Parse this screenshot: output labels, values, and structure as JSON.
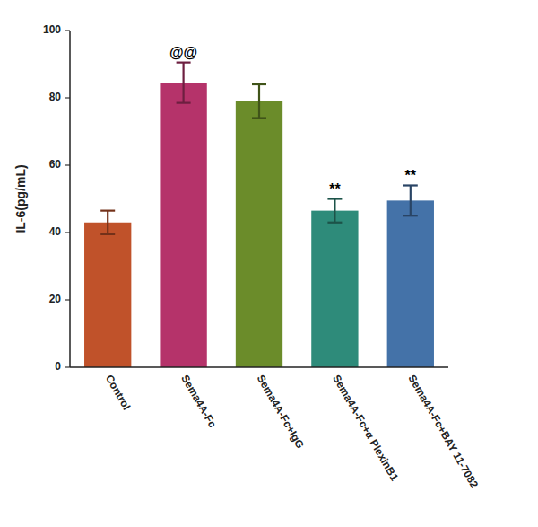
{
  "chart_data": {
    "type": "bar",
    "categories": [
      "Control",
      "Sema4A-Fc",
      "Sema4A-Fc+IgG",
      "Sema4A-Fc+α PlexinB1",
      "Sema4A-Fc+BAY 11-7082"
    ],
    "values": [
      43.0,
      84.5,
      79.0,
      46.5,
      49.5
    ],
    "errors": [
      3.5,
      6.0,
      5.0,
      3.5,
      4.5
    ],
    "colors": [
      "#C0522A",
      "#B5336A",
      "#6B8C2A",
      "#2E8B7A",
      "#4472A8"
    ],
    "ylabel": "IL-6(pg/mL)",
    "ylim": [
      0,
      100
    ],
    "yticks": [
      0,
      20,
      40,
      60,
      80,
      100
    ],
    "annotations": [
      {
        "category": "Sema4A-Fc",
        "text": "@@"
      },
      {
        "category": "Sema4A-Fc+α PlexinB1",
        "text": "**"
      },
      {
        "category": "Sema4A-Fc+BAY 11-7082",
        "text": "**"
      }
    ],
    "grid": false
  }
}
